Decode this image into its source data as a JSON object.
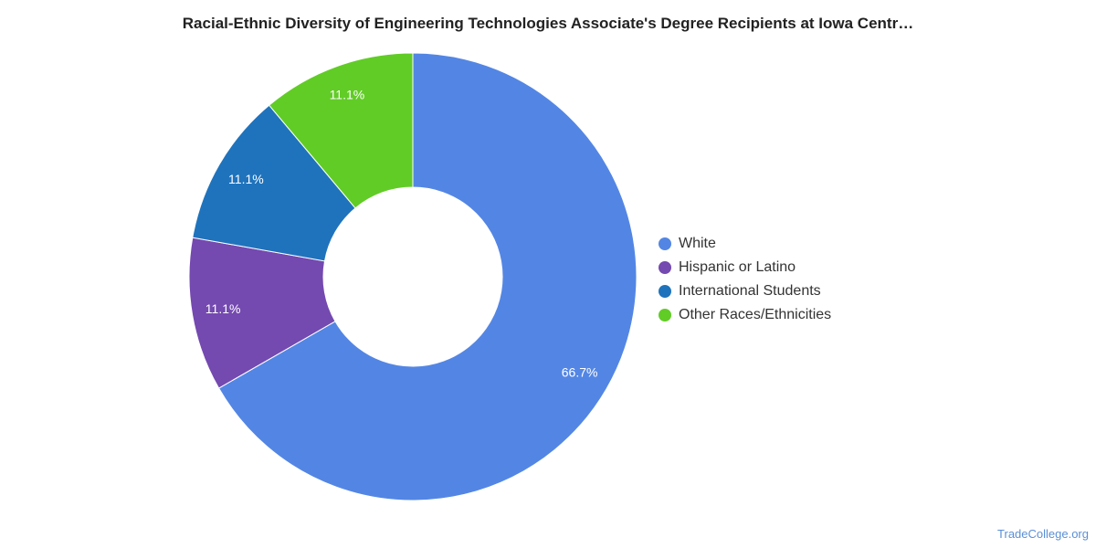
{
  "chart_data": {
    "type": "pie",
    "variant": "donut",
    "title": "Racial-Ethnic Diversity of Engineering Technologies Associate's Degree Recipients at Iowa Centr…",
    "legend_position": "right",
    "slices": [
      {
        "label": "White",
        "value": 66.7,
        "value_label": "66.7%",
        "color": "#5386e4"
      },
      {
        "label": "Hispanic or Latino",
        "value": 11.1,
        "value_label": "11.1%",
        "color": "#7449b0"
      },
      {
        "label": "International Students",
        "value": 11.1,
        "value_label": "11.1%",
        "color": "#1f73bc"
      },
      {
        "label": "Other Races/Ethnicities",
        "value": 11.1,
        "value_label": "11.1%",
        "color": "#61cc26"
      }
    ]
  },
  "footer": {
    "source": "TradeCollege.org"
  }
}
